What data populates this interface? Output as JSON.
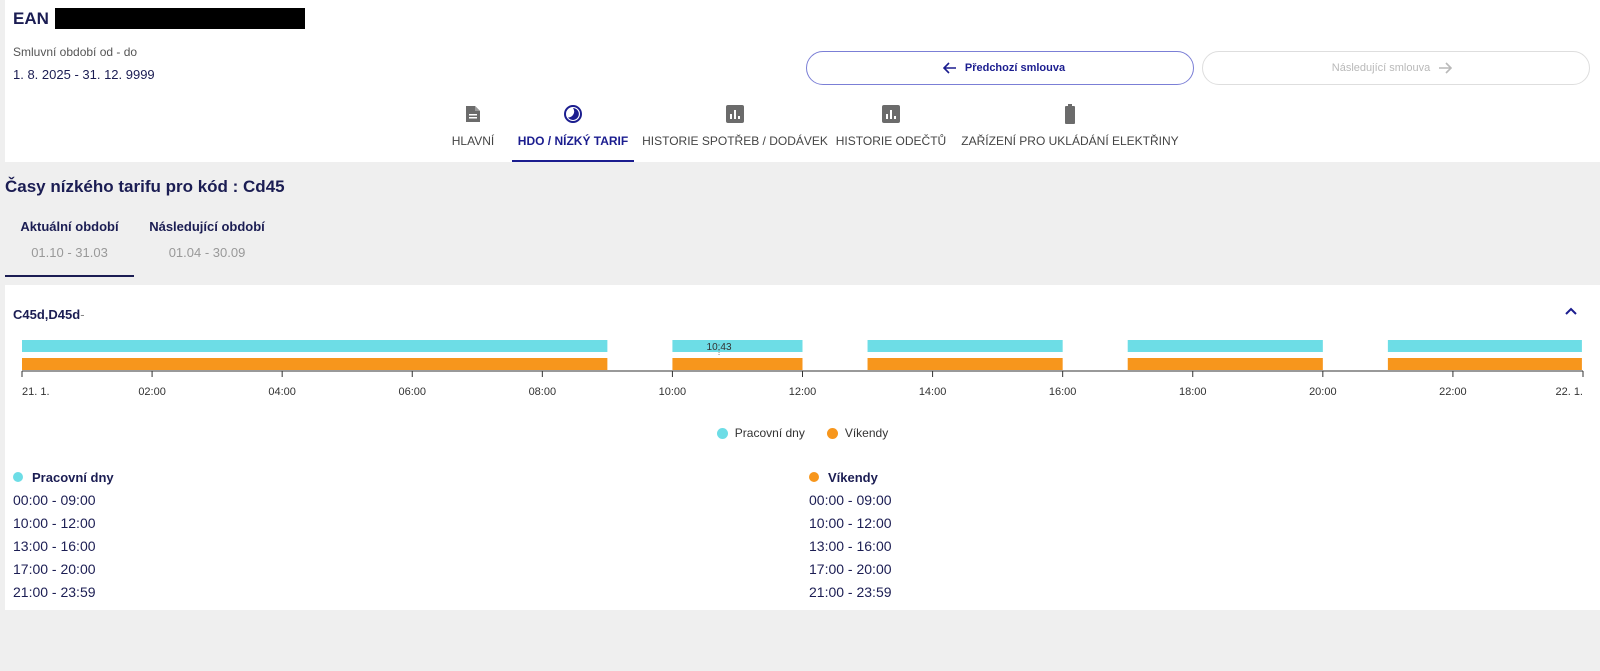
{
  "header": {
    "ean_label": "EAN",
    "contract_period_label": "Smluvní období od - do",
    "contract_period_value": "1. 8. 2025 - 31. 12. 9999",
    "prev_button": "Předchozí smlouva",
    "next_button": "Následující smlouva"
  },
  "tabs": [
    {
      "label": "HLAVNÍ",
      "icon": "document-icon",
      "active": false
    },
    {
      "label": "HDO / NÍZKÝ TARIF",
      "icon": "half-moon-icon",
      "active": true
    },
    {
      "label": "HISTORIE SPOTŘEB / DODÁVEK",
      "icon": "bar-chart-icon",
      "active": false
    },
    {
      "label": "HISTORIE ODEČTŮ",
      "icon": "bar-chart-icon",
      "active": false
    },
    {
      "label": "ZAŘÍZENÍ PRO UKLÁDÁNÍ ELEKTŘINY",
      "icon": "battery-icon",
      "active": false
    }
  ],
  "section_title": "Časy nízkého tarifu pro kód : Cd45",
  "periods": [
    {
      "name": "Aktuální období",
      "range": "01.10 - 31.03",
      "active": true
    },
    {
      "name": "Následující období",
      "range": "01.04 - 30.09",
      "active": false
    }
  ],
  "group": {
    "title": "C45d,D45d",
    "dash": "-"
  },
  "colors": {
    "workdays": "#6ddde6",
    "weekends": "#f7961c",
    "accent": "#1b1d8f"
  },
  "chart_data": {
    "type": "timeline",
    "x_range_hours": [
      0,
      24
    ],
    "x_ticks": [
      "21. 1.",
      "02:00",
      "04:00",
      "06:00",
      "08:00",
      "10:00",
      "12:00",
      "14:00",
      "16:00",
      "18:00",
      "20:00",
      "22:00",
      "22. 1."
    ],
    "cursor_label": "10:43",
    "cursor_hour": 10.717,
    "series": [
      {
        "name": "Pracovní dny",
        "intervals": [
          [
            0,
            9
          ],
          [
            10,
            12
          ],
          [
            13,
            16
          ],
          [
            17,
            20
          ],
          [
            21,
            23.983
          ]
        ]
      },
      {
        "name": "Víkendy",
        "intervals": [
          [
            0,
            9
          ],
          [
            10,
            12
          ],
          [
            13,
            16
          ],
          [
            17,
            20
          ],
          [
            21,
            23.983
          ]
        ]
      }
    ],
    "legend": [
      "Pracovní dny",
      "Víkendy"
    ]
  },
  "lists": {
    "workdays": {
      "title": "Pracovní dny",
      "items": [
        "00:00 - 09:00",
        "10:00 - 12:00",
        "13:00 - 16:00",
        "17:00 - 20:00",
        "21:00 - 23:59"
      ]
    },
    "weekends": {
      "title": "Víkendy",
      "items": [
        "00:00 - 09:00",
        "10:00 - 12:00",
        "13:00 - 16:00",
        "17:00 - 20:00",
        "21:00 - 23:59"
      ]
    }
  }
}
